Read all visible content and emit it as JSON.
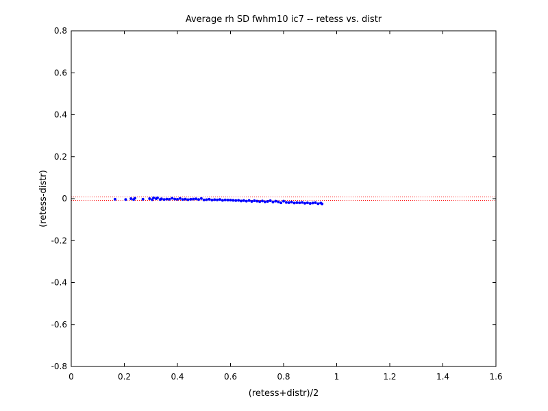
{
  "chart_data": {
    "type": "scatter",
    "title": "Average rh SD fwhm10 ic7 -- retess vs. distr",
    "xlabel": "(retess+distr)/2",
    "ylabel": "(retess-distr)",
    "xlim": [
      0,
      1.6
    ],
    "ylim": [
      -0.8,
      0.8
    ],
    "xticks": [
      0,
      0.2,
      0.4,
      0.6,
      0.8,
      1,
      1.2,
      1.4,
      1.6
    ],
    "xtick_labels": [
      "0",
      "0.2",
      "0.4",
      "0.6",
      "0.8",
      "1",
      "1.2",
      "1.4",
      "1.6"
    ],
    "yticks": [
      -0.8,
      -0.6,
      -0.4,
      -0.2,
      0,
      0.2,
      0.4,
      0.6,
      0.8
    ],
    "ytick_labels": [
      "-0.8",
      "-0.6",
      "-0.4",
      "-0.2",
      "0",
      "0.2",
      "0.4",
      "0.6",
      "0.8"
    ],
    "grid": false,
    "colors": {
      "points": "#0000ff",
      "reference_lines": "#ff0000",
      "axes": "#000000"
    },
    "reference_lines": {
      "style": "dotted",
      "y": [
        0.008,
        -0.008
      ]
    },
    "series": [
      {
        "x": [
          0.165,
          0.205,
          0.225,
          0.235,
          0.24,
          0.27,
          0.295,
          0.305,
          0.31,
          0.32,
          0.325,
          0.335,
          0.34,
          0.35,
          0.36,
          0.37,
          0.38,
          0.39,
          0.4,
          0.41,
          0.42,
          0.43,
          0.44,
          0.45,
          0.46,
          0.47,
          0.48,
          0.49,
          0.5,
          0.51,
          0.52,
          0.53,
          0.54,
          0.55,
          0.56,
          0.57,
          0.58,
          0.59,
          0.6,
          0.61,
          0.62,
          0.63,
          0.64,
          0.65,
          0.66,
          0.67,
          0.68,
          0.69,
          0.7,
          0.71,
          0.72,
          0.73,
          0.74,
          0.75,
          0.76,
          0.77,
          0.78,
          0.79,
          0.8,
          0.81,
          0.82,
          0.83,
          0.84,
          0.85,
          0.86,
          0.87,
          0.88,
          0.89,
          0.9,
          0.91,
          0.92,
          0.93,
          0.94,
          0.945
        ],
        "y": [
          -0.003,
          -0.004,
          0.0,
          -0.004,
          0.002,
          -0.003,
          0.0,
          -0.005,
          0.004,
          0.0,
          0.004,
          -0.004,
          -0.001,
          -0.004,
          -0.002,
          -0.003,
          0.002,
          -0.002,
          -0.003,
          0.001,
          -0.004,
          -0.002,
          -0.005,
          -0.003,
          -0.002,
          -0.001,
          -0.004,
          0.001,
          -0.006,
          -0.005,
          -0.003,
          -0.007,
          -0.005,
          -0.006,
          -0.004,
          -0.008,
          -0.006,
          -0.007,
          -0.007,
          -0.008,
          -0.009,
          -0.008,
          -0.011,
          -0.009,
          -0.012,
          -0.009,
          -0.013,
          -0.01,
          -0.012,
          -0.014,
          -0.011,
          -0.015,
          -0.013,
          -0.01,
          -0.016,
          -0.012,
          -0.015,
          -0.02,
          -0.012,
          -0.018,
          -0.019,
          -0.016,
          -0.021,
          -0.019,
          -0.02,
          -0.018,
          -0.022,
          -0.02,
          -0.023,
          -0.021,
          -0.019,
          -0.024,
          -0.021,
          -0.025
        ]
      }
    ]
  }
}
